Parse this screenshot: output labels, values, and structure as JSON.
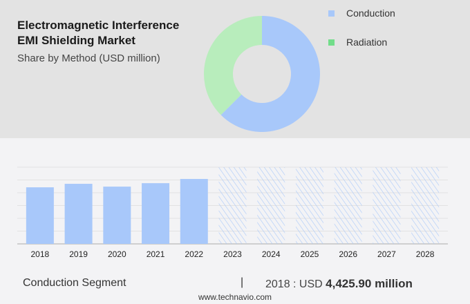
{
  "title_line1": "Electromagnetic Interference",
  "title_line2": "EMI Shielding Market",
  "subtitle": "Share by Method (USD million)",
  "footer": {
    "segment": "Conduction Segment",
    "separator": "|",
    "year_prefix": "2018 : USD",
    "value": "4,425.90 million",
    "site": "www.technavio.com"
  },
  "chart_data": [
    {
      "type": "pie",
      "donut": true,
      "legend_placement": "right",
      "series": [
        {
          "name": "Conduction",
          "value": 62.5,
          "color": "#a8c8fa"
        },
        {
          "name": "Radiation",
          "value": 37.5,
          "color": "#b8edbc"
        }
      ],
      "legend_colors": [
        "#a8c8fa",
        "#72dd8a"
      ]
    },
    {
      "type": "bar",
      "categories": [
        "2018",
        "2019",
        "2020",
        "2021",
        "2022",
        "2023",
        "2024",
        "2025",
        "2026",
        "2027",
        "2028"
      ],
      "values": [
        4425.9,
        4700,
        4480,
        4750,
        5080,
        null,
        null,
        null,
        null,
        null,
        null
      ],
      "forecast": [
        false,
        false,
        false,
        false,
        false,
        true,
        true,
        true,
        true,
        true,
        true
      ],
      "ylim": [
        0,
        6000
      ],
      "grid": true,
      "color": "#a8c8fa",
      "xlabel": "",
      "ylabel": ""
    }
  ]
}
